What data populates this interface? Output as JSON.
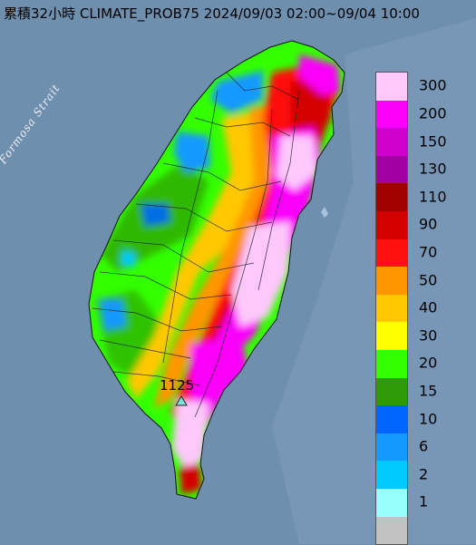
{
  "title": "累積32小時 CLIMATE_PROB75 2024/09/03 02:00~09/04 10:00",
  "water_label": "Formosa Strait",
  "peak": {
    "value": "1125",
    "icon": "triangle-station-icon",
    "icon_color": "#7fdede"
  },
  "legend": [
    {
      "label": "300",
      "color": "#fdc8fb"
    },
    {
      "label": "200",
      "color": "#fa00fa"
    },
    {
      "label": "150",
      "color": "#cf00cf"
    },
    {
      "label": "130",
      "color": "#a300a3"
    },
    {
      "label": "110",
      "color": "#a10000"
    },
    {
      "label": "90",
      "color": "#d40000"
    },
    {
      "label": "70",
      "color": "#ff1010"
    },
    {
      "label": "50",
      "color": "#ff9600"
    },
    {
      "label": "40",
      "color": "#ffc800"
    },
    {
      "label": "30",
      "color": "#ffff00"
    },
    {
      "label": "20",
      "color": "#33ff00"
    },
    {
      "label": "15",
      "color": "#2e9a06"
    },
    {
      "label": "10",
      "color": "#0066ff"
    },
    {
      "label": "6",
      "color": "#1599ff"
    },
    {
      "label": "2",
      "color": "#00c9ff"
    },
    {
      "label": "1",
      "color": "#98ffff"
    },
    {
      "label": "",
      "color": "#c2c2c2"
    }
  ]
}
